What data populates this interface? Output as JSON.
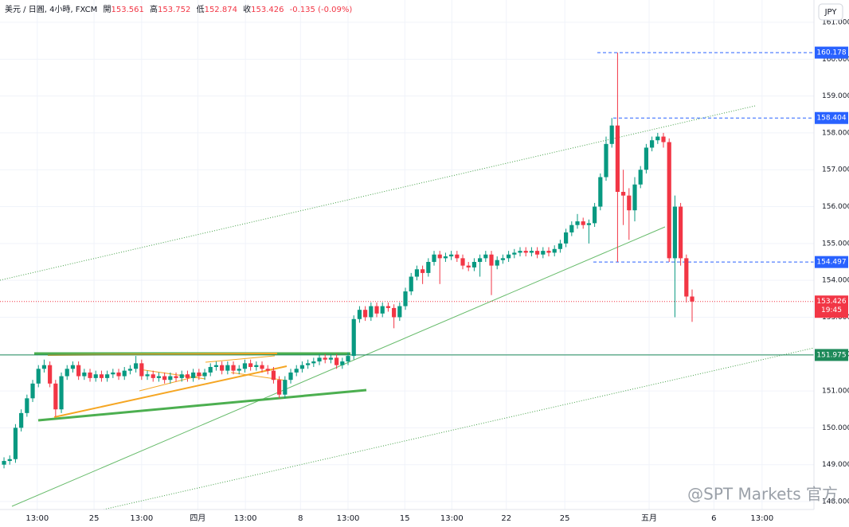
{
  "chart_data": {
    "type": "candlestick",
    "symbol": "美元 / 日圓, 4小時, FXCM",
    "ohlc_labels": [
      "開",
      "高",
      "低",
      "收"
    ],
    "ohlc_values": [
      153.561,
      153.752,
      152.874,
      153.426
    ],
    "change": "-0.135 (-0.09%)",
    "currency": "JPY",
    "watermark": "@SPT Markets 官方",
    "up_color": "#089981",
    "down_color": "#f23645",
    "ylim": [
      147.784,
      161.605
    ],
    "yticks": [
      {
        "value": 148,
        "label": "148.000"
      },
      {
        "value": 149,
        "label": "149.000"
      },
      {
        "value": 150,
        "label": "150.000"
      },
      {
        "value": 151,
        "label": "151.000"
      },
      {
        "value": 152,
        "label": "152.000"
      },
      {
        "value": 153,
        "label": "153.000"
      },
      {
        "value": 154,
        "label": "154.000"
      },
      {
        "value": 155,
        "label": "155.000"
      },
      {
        "value": 156,
        "label": "156.000"
      },
      {
        "value": 157,
        "label": "157.000"
      },
      {
        "value": 158,
        "label": "158.000"
      },
      {
        "value": 159,
        "label": "159.000"
      },
      {
        "value": 160,
        "label": "160.000"
      },
      {
        "value": 161,
        "label": "161.000"
      }
    ],
    "xlim": [
      -0.7,
      141.25
    ],
    "xticks": [
      {
        "value": 5.8,
        "label": "13:00"
      },
      {
        "value": 15.7,
        "label": "25"
      },
      {
        "value": 24,
        "label": "13:00"
      },
      {
        "value": 33.8,
        "label": "四月"
      },
      {
        "value": 42.1,
        "label": "13:00"
      },
      {
        "value": 51.7,
        "label": "8"
      },
      {
        "value": 60,
        "label": "13:00"
      },
      {
        "value": 69.9,
        "label": "15"
      },
      {
        "value": 78.1,
        "label": "13:00"
      },
      {
        "value": 87.6,
        "label": "22"
      },
      {
        "value": 97.8,
        "label": "25"
      },
      {
        "value": 112.5,
        "label": "五月"
      },
      {
        "value": 123.8,
        "label": "6"
      },
      {
        "value": 132.2,
        "label": "13:00"
      }
    ],
    "price_levels": [
      {
        "value": 160.178,
        "color": "#2962ff"
      },
      {
        "value": 158.404,
        "color": "#2962ff"
      },
      {
        "value": 154.497,
        "color": "#2962ff"
      }
    ],
    "support_level": {
      "value": 151.975,
      "color": "#1e8a5a"
    },
    "last_price": {
      "value": 153.426,
      "countdown": "19:45",
      "color": "#f23645"
    },
    "candles": [
      [
        149.0,
        149.2,
        148.9,
        149.1
      ],
      [
        149.1,
        149.25,
        149.0,
        149.15
      ],
      [
        149.15,
        150.1,
        149.05,
        150.0
      ],
      [
        150.0,
        150.5,
        149.9,
        150.4
      ],
      [
        150.4,
        150.9,
        150.3,
        150.8
      ],
      [
        150.8,
        151.3,
        150.7,
        151.2
      ],
      [
        151.2,
        151.7,
        151.1,
        151.6
      ],
      [
        151.6,
        151.85,
        151.5,
        151.7
      ],
      [
        151.7,
        151.8,
        151.1,
        151.2
      ],
      [
        151.2,
        151.3,
        150.3,
        150.5
      ],
      [
        150.5,
        151.5,
        150.4,
        151.4
      ],
      [
        151.4,
        151.7,
        151.3,
        151.6
      ],
      [
        151.6,
        151.8,
        151.5,
        151.7
      ],
      [
        151.7,
        151.8,
        151.3,
        151.4
      ],
      [
        151.4,
        151.6,
        151.3,
        151.5
      ],
      [
        151.5,
        151.6,
        151.25,
        151.35
      ],
      [
        151.35,
        151.55,
        151.25,
        151.45
      ],
      [
        151.45,
        151.55,
        151.25,
        151.35
      ],
      [
        151.35,
        151.55,
        151.25,
        151.45
      ],
      [
        151.45,
        151.6,
        151.35,
        151.5
      ],
      [
        151.5,
        151.6,
        151.3,
        151.4
      ],
      [
        151.4,
        151.65,
        151.3,
        151.55
      ],
      [
        151.55,
        151.7,
        151.45,
        151.6
      ],
      [
        151.6,
        151.95,
        151.5,
        151.75
      ],
      [
        151.75,
        151.85,
        151.3,
        151.4
      ],
      [
        151.4,
        151.55,
        151.3,
        151.45
      ],
      [
        151.45,
        151.55,
        151.25,
        151.35
      ],
      [
        151.35,
        151.5,
        151.25,
        151.4
      ],
      [
        151.4,
        151.5,
        151.2,
        151.3
      ],
      [
        151.3,
        151.5,
        151.2,
        151.4
      ],
      [
        151.4,
        151.5,
        151.25,
        151.35
      ],
      [
        151.35,
        151.55,
        151.25,
        151.45
      ],
      [
        151.45,
        151.55,
        151.25,
        151.35
      ],
      [
        151.35,
        151.6,
        151.25,
        151.5
      ],
      [
        151.5,
        151.6,
        151.3,
        151.4
      ],
      [
        151.4,
        151.6,
        151.3,
        151.5
      ],
      [
        151.5,
        151.75,
        151.4,
        151.65
      ],
      [
        151.65,
        151.8,
        151.55,
        151.7
      ],
      [
        151.7,
        151.8,
        151.45,
        151.55
      ],
      [
        151.55,
        151.8,
        151.45,
        151.7
      ],
      [
        151.7,
        151.8,
        151.45,
        151.55
      ],
      [
        151.55,
        151.7,
        151.45,
        151.6
      ],
      [
        151.6,
        151.85,
        151.5,
        151.75
      ],
      [
        151.75,
        151.85,
        151.55,
        151.65
      ],
      [
        151.65,
        151.8,
        151.55,
        151.7
      ],
      [
        151.7,
        151.8,
        151.5,
        151.6
      ],
      [
        151.6,
        151.7,
        151.45,
        151.55
      ],
      [
        151.55,
        151.65,
        151.2,
        151.3
      ],
      [
        151.3,
        151.4,
        150.8,
        150.9
      ],
      [
        150.9,
        151.4,
        150.8,
        151.3
      ],
      [
        151.3,
        151.6,
        151.2,
        151.5
      ],
      [
        151.5,
        151.7,
        151.4,
        151.6
      ],
      [
        151.6,
        151.8,
        151.5,
        151.7
      ],
      [
        151.7,
        151.85,
        151.6,
        151.75
      ],
      [
        151.75,
        151.9,
        151.65,
        151.8
      ],
      [
        151.8,
        152.0,
        151.7,
        151.9
      ],
      [
        151.9,
        152.0,
        151.75,
        151.85
      ],
      [
        151.85,
        152.0,
        151.75,
        151.9
      ],
      [
        151.9,
        152.0,
        151.6,
        151.7
      ],
      [
        151.7,
        151.9,
        151.6,
        151.8
      ],
      [
        151.8,
        152.05,
        151.7,
        151.95
      ],
      [
        151.95,
        153.05,
        151.85,
        152.95
      ],
      [
        152.95,
        153.3,
        152.85,
        153.2
      ],
      [
        153.2,
        153.3,
        152.9,
        153.0
      ],
      [
        153.0,
        153.4,
        152.9,
        153.3
      ],
      [
        153.3,
        153.4,
        153.0,
        153.1
      ],
      [
        153.1,
        153.4,
        153.0,
        153.3
      ],
      [
        153.3,
        153.4,
        153.15,
        153.25
      ],
      [
        153.25,
        153.35,
        152.7,
        153.0
      ],
      [
        153.0,
        153.4,
        152.9,
        153.3
      ],
      [
        153.3,
        153.8,
        153.2,
        153.7
      ],
      [
        153.7,
        154.2,
        153.6,
        154.1
      ],
      [
        154.1,
        154.4,
        154.0,
        154.3
      ],
      [
        154.3,
        154.4,
        153.9,
        154.2
      ],
      [
        154.2,
        154.6,
        154.1,
        154.5
      ],
      [
        154.5,
        154.8,
        154.4,
        154.7
      ],
      [
        154.7,
        154.8,
        153.9,
        154.6
      ],
      [
        154.6,
        154.75,
        154.5,
        154.65
      ],
      [
        154.65,
        154.8,
        154.55,
        154.7
      ],
      [
        154.7,
        154.8,
        154.5,
        154.6
      ],
      [
        154.6,
        154.7,
        154.3,
        154.4
      ],
      [
        154.4,
        154.5,
        154.25,
        154.35
      ],
      [
        154.35,
        154.6,
        154.25,
        154.5
      ],
      [
        154.5,
        154.7,
        154.1,
        154.6
      ],
      [
        154.6,
        154.8,
        154.5,
        154.7
      ],
      [
        154.7,
        154.8,
        153.6,
        154.4
      ],
      [
        154.4,
        154.65,
        154.3,
        154.55
      ],
      [
        154.55,
        154.7,
        154.45,
        154.6
      ],
      [
        154.6,
        154.8,
        154.5,
        154.7
      ],
      [
        154.7,
        154.85,
        154.6,
        154.75
      ],
      [
        154.75,
        154.9,
        154.65,
        154.8
      ],
      [
        154.8,
        154.9,
        154.65,
        154.75
      ],
      [
        154.75,
        154.9,
        154.65,
        154.8
      ],
      [
        154.8,
        154.9,
        154.6,
        154.7
      ],
      [
        154.7,
        154.9,
        154.6,
        154.8
      ],
      [
        154.8,
        154.9,
        154.65,
        154.75
      ],
      [
        154.75,
        154.95,
        154.65,
        154.85
      ],
      [
        154.85,
        155.1,
        154.75,
        155.0
      ],
      [
        155.0,
        155.4,
        154.9,
        155.3
      ],
      [
        155.3,
        155.6,
        155.2,
        155.5
      ],
      [
        155.5,
        155.8,
        155.4,
        155.6
      ],
      [
        155.6,
        155.7,
        155.4,
        155.5
      ],
      [
        155.5,
        155.65,
        155.0,
        155.55
      ],
      [
        155.55,
        156.1,
        155.45,
        156.0
      ],
      [
        156.0,
        156.9,
        155.9,
        156.8
      ],
      [
        156.8,
        157.9,
        156.7,
        157.7
      ],
      [
        157.7,
        158.404,
        157.6,
        158.2
      ],
      [
        158.2,
        160.178,
        154.5,
        156.4
      ],
      [
        156.4,
        157.0,
        155.5,
        156.3
      ],
      [
        156.3,
        156.5,
        155.1,
        155.9
      ],
      [
        155.9,
        156.8,
        155.6,
        156.6
      ],
      [
        156.6,
        157.1,
        156.5,
        157.0
      ],
      [
        157.0,
        157.7,
        156.9,
        157.6
      ],
      [
        157.6,
        157.9,
        157.5,
        157.8
      ],
      [
        157.8,
        158.0,
        157.7,
        157.9
      ],
      [
        157.9,
        158.0,
        157.6,
        157.75
      ],
      [
        157.75,
        157.85,
        154.5,
        154.6
      ],
      [
        154.6,
        156.3,
        153.0,
        156.0
      ],
      [
        156.0,
        156.1,
        154.4,
        154.6
      ],
      [
        154.6,
        154.7,
        153.4,
        153.561
      ],
      [
        153.561,
        153.752,
        152.874,
        153.426
      ]
    ]
  }
}
